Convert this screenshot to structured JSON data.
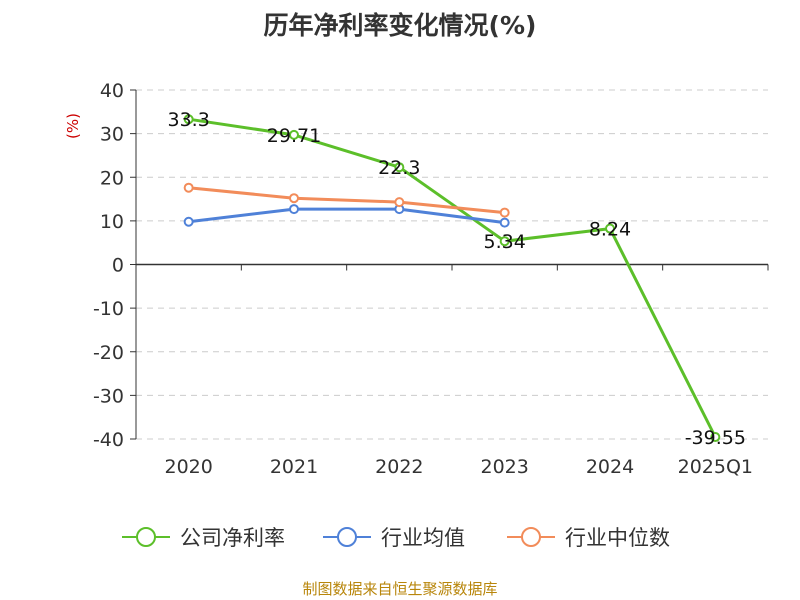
{
  "chart_data": {
    "type": "line",
    "title": "历年净利率变化情况(%)",
    "ylabel": "(%)",
    "categories": [
      "2020",
      "2021",
      "2022",
      "2023",
      "2024",
      "2025Q1"
    ],
    "ylim": [
      -40,
      40
    ],
    "yticks": [
      40,
      30,
      20,
      10,
      0,
      -10,
      -20,
      -30,
      -40
    ],
    "grid": "horizontal dashed",
    "legend_position": "bottom",
    "series": [
      {
        "name": "公司净利率",
        "color": "#5cbf2a",
        "values": [
          33.3,
          29.71,
          22.3,
          5.34,
          8.24,
          -39.55
        ],
        "labels": [
          "33.3",
          "29.71",
          "22.3",
          "5.34",
          "8.24",
          "-39.55"
        ]
      },
      {
        "name": "行业均值",
        "color": "#4f81d8",
        "values": [
          9.8,
          12.7,
          12.7,
          9.6,
          null,
          null
        ]
      },
      {
        "name": "行业中位数",
        "color": "#f28c5a",
        "values": [
          17.6,
          15.2,
          14.3,
          11.9,
          null,
          null
        ]
      }
    ]
  },
  "source": "制图数据来自恒生聚源数据库",
  "ylabel_color": "#cc0000"
}
